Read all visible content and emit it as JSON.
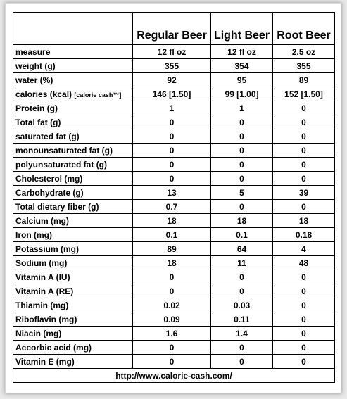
{
  "table": {
    "columns": [
      "Regular Beer",
      "Light Beer",
      "Root Beer"
    ],
    "rows": [
      {
        "label": "measure",
        "values": [
          "12 fl oz",
          "12 fl oz",
          "2.5 oz"
        ]
      },
      {
        "label": "weight (g)",
        "values": [
          "355",
          "354",
          "355"
        ]
      },
      {
        "label": "water (%)",
        "values": [
          "92",
          "95",
          "89"
        ]
      },
      {
        "label": "calories (kcal)",
        "note": "[calorie cash™]",
        "values": [
          "146 [1.50]",
          "99 [1.00]",
          "152 [1.50]"
        ]
      },
      {
        "label": "Protein (g)",
        "values": [
          "1",
          "1",
          "0"
        ]
      },
      {
        "label": "Total fat (g)",
        "values": [
          "0",
          "0",
          "0"
        ]
      },
      {
        "label": "saturated fat  (g)",
        "values": [
          "0",
          "0",
          "0"
        ]
      },
      {
        "label": "monounsaturated fat  (g)",
        "values": [
          "0",
          "0",
          "0"
        ]
      },
      {
        "label": "polyunsaturated fat  (g)",
        "values": [
          "0",
          "0",
          "0"
        ]
      },
      {
        "label": "Cholesterol (mg)",
        "values": [
          "0",
          "0",
          "0"
        ]
      },
      {
        "label": "Carbohydrate (g)",
        "values": [
          "13",
          "5",
          "39"
        ]
      },
      {
        "label": "Total dietary fiber (g)",
        "values": [
          "0.7",
          "0",
          "0"
        ]
      },
      {
        "label": "Calcium (mg)",
        "values": [
          "18",
          "18",
          "18"
        ]
      },
      {
        "label": "Iron (mg)",
        "values": [
          "0.1",
          "0.1",
          "0.18"
        ]
      },
      {
        "label": "Potassium (mg)",
        "values": [
          "89",
          "64",
          "4"
        ]
      },
      {
        "label": "Sodium (mg)",
        "values": [
          "18",
          "11",
          "48"
        ]
      },
      {
        "label": "Vitamin A (IU)",
        "values": [
          "0",
          "0",
          "0"
        ]
      },
      {
        "label": "Vitamin A (RE)",
        "values": [
          "0",
          "0",
          "0"
        ]
      },
      {
        "label": "Thiamin (mg)",
        "values": [
          "0.02",
          "0.03",
          "0"
        ]
      },
      {
        "label": "Riboflavin (mg)",
        "values": [
          "0.09",
          "0.11",
          "0"
        ]
      },
      {
        "label": "Niacin (mg)",
        "values": [
          "1.6",
          "1.4",
          "0"
        ]
      },
      {
        "label": "Accorbic acid (mg)",
        "values": [
          "0",
          "0",
          "0"
        ]
      },
      {
        "label": "Vitamin E (mg)",
        "values": [
          "0",
          "0",
          "0"
        ]
      }
    ],
    "footer": "http://www.calorie-cash.com/"
  }
}
